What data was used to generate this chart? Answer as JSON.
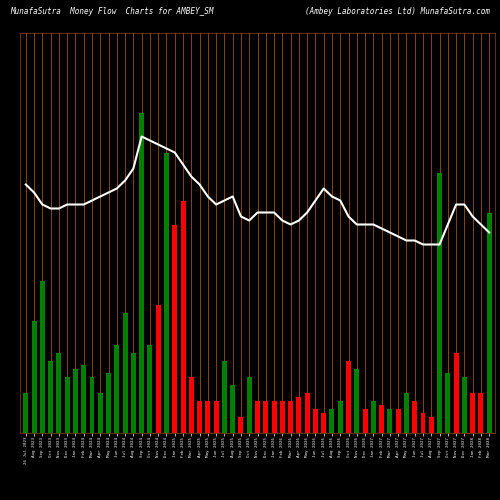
{
  "title_left": "MunafaSutra  Money Flow  Charts for AMBEY_SM",
  "title_right": "(Ambey Laboratories Ltd) MunafaSutra.com",
  "bg_color": "#000000",
  "grid_color": "#8B4500",
  "line_color": "#ffffff",
  "bar_colors": [
    "green",
    "green",
    "green",
    "green",
    "green",
    "green",
    "green",
    "green",
    "green",
    "green",
    "green",
    "green",
    "green",
    "green",
    "green",
    "green",
    "red",
    "green",
    "red",
    "red",
    "red",
    "red",
    "red",
    "red",
    "green",
    "green",
    "red",
    "green",
    "red",
    "red",
    "red",
    "red",
    "red",
    "red",
    "red",
    "red",
    "red",
    "green",
    "green",
    "red",
    "green",
    "red",
    "green",
    "red",
    "green",
    "red",
    "green",
    "red",
    "red",
    "red",
    "green",
    "green",
    "red",
    "green",
    "red",
    "red",
    "green"
  ],
  "bar_values": [
    10,
    28,
    38,
    18,
    20,
    14,
    16,
    17,
    14,
    10,
    15,
    22,
    30,
    20,
    80,
    22,
    32,
    70,
    52,
    58,
    14,
    8,
    8,
    8,
    18,
    12,
    4,
    14,
    8,
    8,
    8,
    8,
    8,
    9,
    10,
    6,
    5,
    6,
    8,
    18,
    16,
    6,
    8,
    7,
    6,
    6,
    10,
    8,
    5,
    4,
    65,
    15,
    20,
    14,
    10,
    10,
    55
  ],
  "line_values": [
    62,
    60,
    57,
    56,
    56,
    57,
    57,
    57,
    58,
    59,
    60,
    61,
    63,
    66,
    74,
    73,
    72,
    71,
    70,
    67,
    64,
    62,
    59,
    57,
    58,
    59,
    54,
    53,
    55,
    55,
    55,
    53,
    52,
    53,
    55,
    58,
    61,
    59,
    58,
    54,
    52,
    52,
    52,
    51,
    50,
    49,
    48,
    48,
    47,
    47,
    47,
    52,
    57,
    57,
    54,
    52,
    50
  ],
  "x_labels": [
    "26 Jul 2023",
    "Aug 2023",
    "Sep 2023",
    "Oct 2023",
    "Nov 2023",
    "Dec 2023",
    "Jan 2024",
    "Feb 2024",
    "Mar 2024",
    "Apr 2024",
    "May 2024",
    "Jun 2024",
    "Jul 2024",
    "Aug 2024",
    "Sep 2024",
    "Oct 2024",
    "Nov 2024",
    "Dec 2024",
    "Jan 2025",
    "Feb 2025",
    "Mar 2025",
    "Apr 2025",
    "May 2025",
    "Jun 2025",
    "Jul 2025",
    "Aug 2025",
    "Sep 2025",
    "Oct 2025",
    "Nov 2025",
    "Dec 2025",
    "Jan 2026",
    "Feb 2026",
    "Mar 2026",
    "Apr 2026",
    "May 2026",
    "Jun 2026",
    "Jul 2026",
    "Aug 2026",
    "Sep 2026",
    "Oct 2026",
    "Nov 2026",
    "Dec 2026",
    "Jan 2027",
    "Feb 2027",
    "Mar 2027",
    "Apr 2027",
    "May 2027",
    "Jun 2027",
    "Jul 2027",
    "Aug 2027",
    "Sep 2027",
    "Oct 2027",
    "Nov 2027",
    "Dec 2027",
    "Jan 2028",
    "Feb 2028",
    "Mar 2028"
  ],
  "figsize": [
    5.0,
    5.0
  ],
  "dpi": 100,
  "ylim": [
    0,
    100
  ]
}
